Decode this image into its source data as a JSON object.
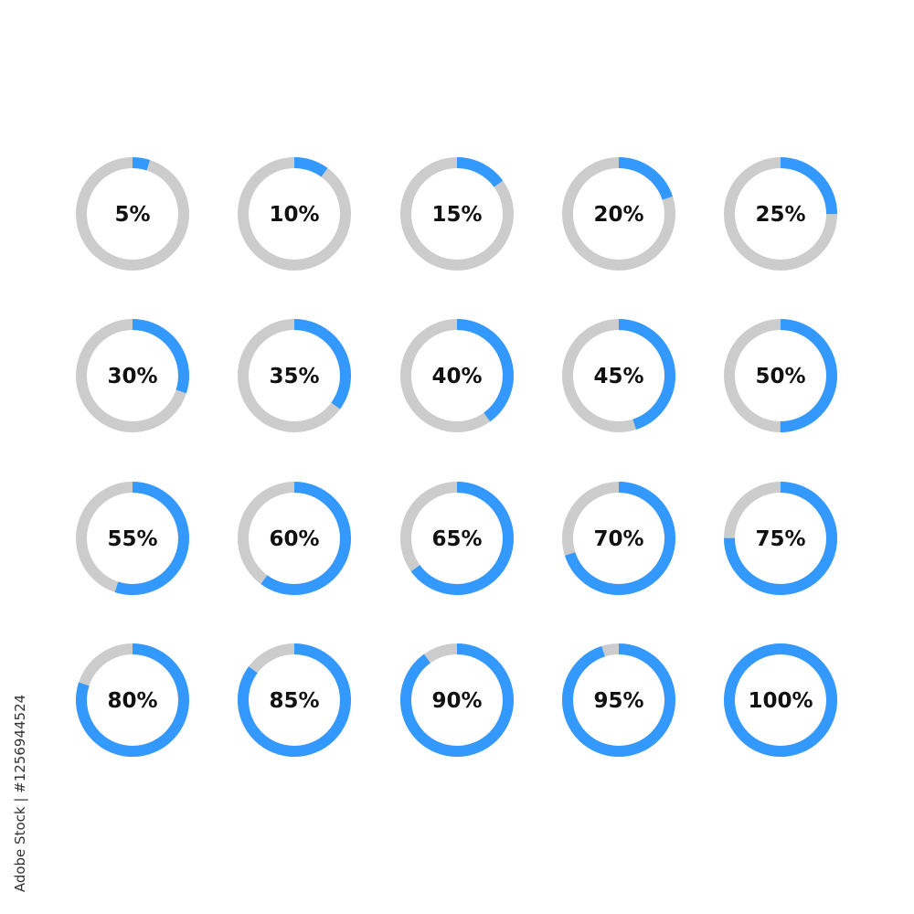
{
  "chart_data": {
    "type": "donut-grid",
    "values": [
      5,
      10,
      15,
      20,
      25,
      30,
      35,
      40,
      45,
      50,
      55,
      60,
      65,
      70,
      75,
      80,
      85,
      90,
      95,
      100
    ],
    "labels": [
      "5%",
      "10%",
      "15%",
      "20%",
      "25%",
      "30%",
      "35%",
      "40%",
      "45%",
      "50%",
      "55%",
      "60%",
      "65%",
      "70%",
      "75%",
      "80%",
      "85%",
      "90%",
      "95%",
      "100%"
    ],
    "max": 100,
    "colors": {
      "filled": "#3399ff",
      "track": "#cccccc",
      "text": "#111111"
    }
  },
  "watermark": "Adobe Stock | #1256944524"
}
